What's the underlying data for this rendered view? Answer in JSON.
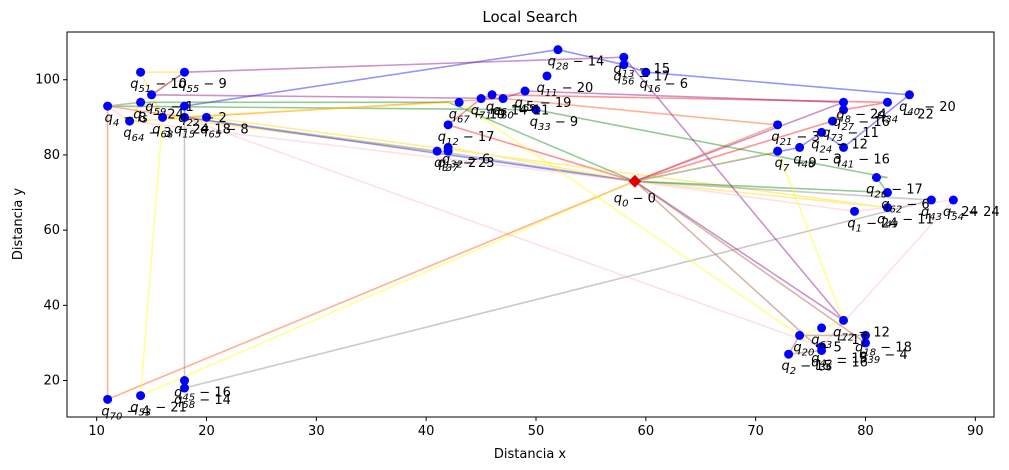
{
  "chart_data": {
    "type": "scatter",
    "title": "Local Search",
    "xlabel": "Distancia x",
    "ylabel": "Distancia y",
    "xlim": [
      7.3,
      91.7
    ],
    "ylim": [
      10.3,
      112.7
    ],
    "xticks": [
      10,
      20,
      30,
      40,
      50,
      60,
      70,
      80,
      90
    ],
    "yticks": [
      20,
      40,
      60,
      80,
      100
    ],
    "depot": {
      "label": "q_0 - 0",
      "x": 59,
      "y": 73
    },
    "points": [
      {
        "label": "q_1 - 24",
        "x": 79,
        "y": 65
      },
      {
        "label": "q_2 - 15",
        "x": 73,
        "y": 27
      },
      {
        "label": "q_3 - 2",
        "x": 41,
        "y": 81
      },
      {
        "label": "q_4 - 8",
        "x": 11,
        "y": 93
      },
      {
        "label": "q_5 - 24",
        "x": 14,
        "y": 94
      },
      {
        "label": "q_7 - 9",
        "x": 72,
        "y": 81
      },
      {
        "label": "q_8 - 24",
        "x": 78,
        "y": 94
      },
      {
        "label": "q_11 - 20",
        "x": 51,
        "y": 101
      },
      {
        "label": "q_12 - 17",
        "x": 42,
        "y": 88
      },
      {
        "label": "q_13 - 15",
        "x": 58,
        "y": 106
      },
      {
        "label": "q_15 - 18",
        "x": 18,
        "y": 90
      },
      {
        "label": "q_16 - 6",
        "x": 60,
        "y": 102
      },
      {
        "label": "q_18 - 18",
        "x": 80,
        "y": 32
      },
      {
        "label": "q_20 - 5",
        "x": 74,
        "y": 32
      },
      {
        "label": "q_21 - 3",
        "x": 72,
        "y": 88
      },
      {
        "label": "q_22 - 2",
        "x": 18,
        "y": 93
      },
      {
        "label": "q_24 - 12",
        "x": 76,
        "y": 86
      },
      {
        "label": "q_26 - 17",
        "x": 81,
        "y": 74
      },
      {
        "label": "q_27 - 16",
        "x": 78,
        "y": 92
      },
      {
        "label": "q_28 - 14",
        "x": 52,
        "y": 108
      },
      {
        "label": "q_32 - 6",
        "x": 42,
        "y": 82
      },
      {
        "label": "q_33 - 9",
        "x": 50,
        "y": 92
      },
      {
        "label": "q_34 - 22",
        "x": 82,
        "y": 94
      },
      {
        "label": "q_36 - 16",
        "x": 76,
        "y": 28
      },
      {
        "label": "q_37 - 23",
        "x": 42,
        "y": 81
      },
      {
        "label": "q_39 - 4",
        "x": 80,
        "y": 30
      },
      {
        "label": "q_40 - 20",
        "x": 84,
        "y": 96
      },
      {
        "label": "q_41 - 16",
        "x": 78,
        "y": 82
      },
      {
        "label": "q_42 - 15",
        "x": 76,
        "y": 29
      },
      {
        "label": "q_43 - 24",
        "x": 86,
        "y": 68
      },
      {
        "label": "q_45 - 16",
        "x": 18,
        "y": 20
      },
      {
        "label": "q_46 - 3",
        "x": 74,
        "y": 82
      },
      {
        "label": "q_49 - 11",
        "x": 82,
        "y": 66
      },
      {
        "label": "q_51 - 10",
        "x": 14,
        "y": 102
      },
      {
        "label": "q_53 - 21",
        "x": 14,
        "y": 16
      },
      {
        "label": "q_54 - 24",
        "x": 88,
        "y": 68
      },
      {
        "label": "q_55 - 9",
        "x": 18,
        "y": 102
      },
      {
        "label": "q_56 - 17",
        "x": 58,
        "y": 104
      },
      {
        "label": "q_58 - 14",
        "x": 18,
        "y": 18
      },
      {
        "label": "q_59 - 1",
        "x": 15,
        "y": 96
      },
      {
        "label": "q_60 - 11",
        "x": 47,
        "y": 95
      },
      {
        "label": "q_62 - 6",
        "x": 82,
        "y": 70
      },
      {
        "label": "q_63 - 17",
        "x": 76,
        "y": 34
      },
      {
        "label": "q_64 - 3",
        "x": 13,
        "y": 89
      },
      {
        "label": "q_65 - 8",
        "x": 20,
        "y": 90
      },
      {
        "label": "q_66 - 5",
        "x": 46,
        "y": 96
      },
      {
        "label": "q_67 - 19",
        "x": 43,
        "y": 94
      },
      {
        "label": "q_68 - 24",
        "x": 16,
        "y": 90
      },
      {
        "label": "q_69 - 19",
        "x": 49,
        "y": 97
      },
      {
        "label": "q_70 - 4",
        "x": 11,
        "y": 15
      },
      {
        "label": "q_71 - 14",
        "x": 45,
        "y": 95
      },
      {
        "label": "q_72 - 12",
        "x": 78,
        "y": 36
      },
      {
        "label": "q_73 - 11",
        "x": 77,
        "y": 89
      }
    ],
    "routes": [
      {
        "color": "#ff0000",
        "path": [
          [
            59,
            73
          ],
          [
            42,
            88
          ],
          [
            45,
            95
          ],
          [
            46,
            96
          ],
          [
            82,
            94
          ],
          [
            78,
            92
          ],
          [
            77,
            89
          ],
          [
            59,
            73
          ]
        ]
      },
      {
        "color": "#ffd700",
        "path": [
          [
            59,
            73
          ],
          [
            42,
            82
          ],
          [
            42,
            81
          ],
          [
            41,
            81
          ],
          [
            16,
            90
          ],
          [
            14,
            102
          ],
          [
            18,
            102
          ],
          [
            14,
            94
          ],
          [
            13,
            89
          ],
          [
            20,
            90
          ],
          [
            82,
            66
          ],
          [
            59,
            73
          ]
        ]
      },
      {
        "color": "#0000ff",
        "path": [
          [
            59,
            73
          ],
          [
            74,
            82
          ],
          [
            76,
            86
          ],
          [
            78,
            82
          ],
          [
            84,
            96
          ],
          [
            60,
            102
          ],
          [
            58,
            104
          ],
          [
            52,
            108
          ],
          [
            18,
            93
          ],
          [
            18,
            90
          ],
          [
            59,
            73
          ]
        ]
      },
      {
        "color": "#808080",
        "path": [
          [
            59,
            73
          ],
          [
            41,
            81
          ],
          [
            18,
            90
          ],
          [
            18,
            20
          ],
          [
            18,
            18
          ],
          [
            86,
            68
          ],
          [
            59,
            73
          ]
        ]
      },
      {
        "color": "#800080",
        "path": [
          [
            59,
            73
          ],
          [
            78,
            36
          ],
          [
            58,
            106
          ],
          [
            18,
            102
          ],
          [
            15,
            96
          ],
          [
            47,
            95
          ],
          [
            49,
            97
          ],
          [
            78,
            94
          ],
          [
            59,
            73
          ]
        ]
      },
      {
        "color": "#008000",
        "path": [
          [
            59,
            73
          ],
          [
            42,
            94
          ],
          [
            14,
            94
          ],
          [
            11,
            93
          ],
          [
            50,
            92
          ],
          [
            82,
            74
          ],
          [
            81,
            74
          ],
          [
            82,
            70
          ],
          [
            59,
            73
          ]
        ]
      },
      {
        "color": "#ffb6c1",
        "path": [
          [
            59,
            73
          ],
          [
            13,
            89
          ],
          [
            11,
            93
          ],
          [
            14,
            94
          ],
          [
            76,
            29
          ],
          [
            88,
            68
          ],
          [
            79,
            65
          ],
          [
            59,
            73
          ]
        ]
      },
      {
        "color": "#ff4500",
        "path": [
          [
            59,
            73
          ],
          [
            11,
            15
          ],
          [
            11,
            93
          ],
          [
            18,
            90
          ],
          [
            47,
            95
          ],
          [
            72,
            88
          ],
          [
            59,
            73
          ]
        ]
      },
      {
        "color": "#a0522d",
        "path": [
          [
            59,
            73
          ],
          [
            76,
            28
          ],
          [
            73,
            27
          ],
          [
            74,
            32
          ],
          [
            80,
            32
          ],
          [
            80,
            30
          ],
          [
            59,
            73
          ]
        ]
      },
      {
        "color": "#ffff00",
        "path": [
          [
            59,
            73
          ],
          [
            14,
            16
          ],
          [
            16,
            90
          ],
          [
            43,
            94
          ],
          [
            74,
            32
          ],
          [
            78,
            36
          ],
          [
            72,
            81
          ],
          [
            59,
            73
          ]
        ]
      }
    ]
  }
}
